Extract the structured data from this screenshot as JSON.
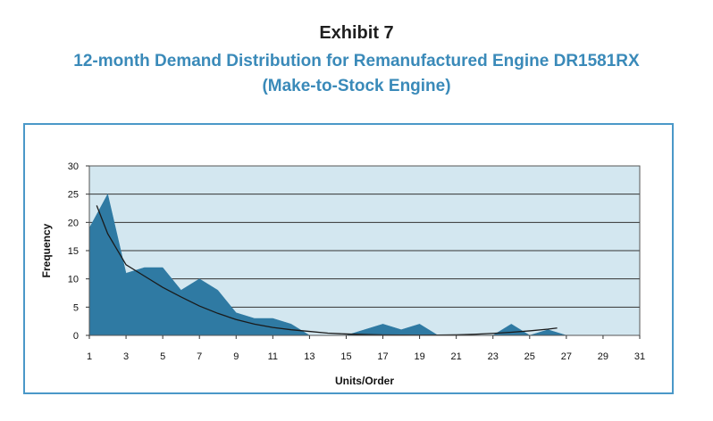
{
  "header": {
    "exhibit": "Exhibit 7",
    "title": "12-month Demand Distribution for Remanufactured Engine DR1581RX",
    "subtitle": "(Make-to-Stock Engine)"
  },
  "colors": {
    "title": "#3a8ab9",
    "plot_background": "#d3e7f0",
    "area_fill": "#2f7aa3",
    "trend_line": "#1a1a1a",
    "frame_border": "#4a98c8"
  },
  "chart_data": {
    "type": "area",
    "title": "12-month Demand Distribution for Remanufactured Engine DR1581RX",
    "subtitle": "(Make-to-Stock Engine)",
    "xlabel": "Units/Order",
    "ylabel": "Frequency",
    "xlim": [
      1,
      31
    ],
    "ylim": [
      0,
      30
    ],
    "x_ticks": [
      1,
      3,
      5,
      7,
      9,
      11,
      13,
      15,
      17,
      19,
      21,
      23,
      25,
      27,
      29,
      31
    ],
    "y_ticks": [
      0,
      5,
      10,
      15,
      20,
      25,
      30
    ],
    "grid": "horizontal",
    "legend": "none",
    "series": [
      {
        "type": "area",
        "x": [
          1,
          2,
          3,
          4,
          5,
          6,
          7,
          8,
          9,
          10,
          11,
          12,
          13,
          14,
          15,
          16,
          17,
          18,
          19,
          20,
          21,
          22,
          23,
          24,
          25,
          26,
          27,
          28,
          29,
          30,
          31
        ],
        "values": [
          19,
          25,
          11,
          12,
          12,
          8,
          10,
          8,
          4,
          3,
          3,
          2,
          0,
          0,
          0,
          1,
          2,
          1,
          2,
          0,
          0,
          0,
          0,
          2,
          0,
          1,
          0,
          0,
          0,
          0,
          0
        ]
      },
      {
        "type": "trendline",
        "x": [
          1.4,
          2,
          3,
          4,
          5,
          6,
          7,
          8,
          9,
          10,
          11,
          12,
          13,
          14,
          15,
          16,
          17,
          18,
          19,
          20,
          21,
          22,
          23,
          24,
          25,
          26,
          26.5
        ],
        "values": [
          23,
          18,
          12.5,
          10.5,
          8.5,
          6.8,
          5.2,
          3.9,
          2.8,
          2.0,
          1.4,
          1.0,
          0.7,
          0.4,
          0.25,
          0.15,
          0.08,
          0.05,
          0.04,
          0.05,
          0.1,
          0.2,
          0.35,
          0.55,
          0.8,
          1.1,
          1.3
        ]
      }
    ]
  }
}
